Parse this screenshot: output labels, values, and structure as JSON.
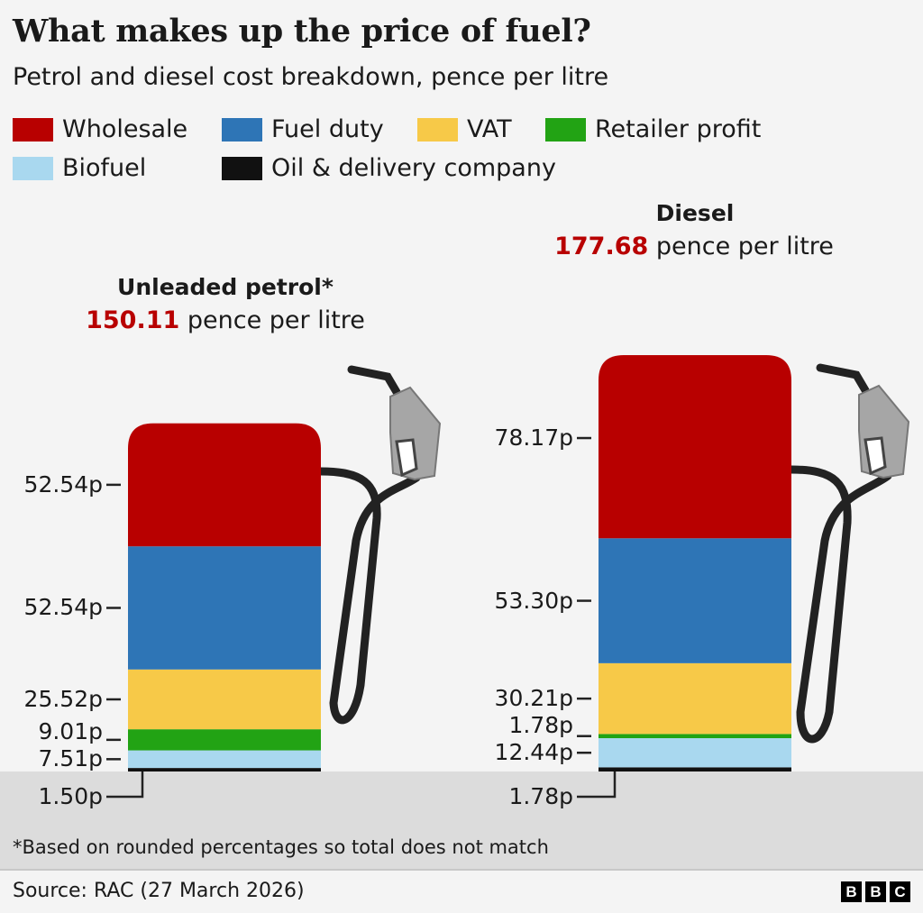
{
  "title": "What makes up the price of fuel?",
  "subtitle": "Petrol and diesel cost breakdown, pence per litre",
  "legend": [
    {
      "label": "Wholesale",
      "color": "#b80000"
    },
    {
      "label": "Fuel duty",
      "color": "#2e75b6"
    },
    {
      "label": "VAT",
      "color": "#f7c948"
    },
    {
      "label": "Retailer profit",
      "color": "#22a314"
    },
    {
      "label": "Biofuel",
      "color": "#a9d8ef"
    },
    {
      "label": "Oil & delivery company",
      "color": "#111111"
    }
  ],
  "chart_data": {
    "type": "bar",
    "stacked": true,
    "units": "pence per litre",
    "categories": [
      "Unleaded petrol*",
      "Diesel"
    ],
    "totals": [
      "150.11",
      "177.68"
    ],
    "total_suffix": " pence per litre",
    "series": [
      {
        "name": "Wholesale",
        "values": [
          52.54,
          78.17
        ],
        "labels": [
          "52.54p",
          "78.17p"
        ]
      },
      {
        "name": "Fuel duty",
        "values": [
          52.54,
          53.3
        ],
        "labels": [
          "52.54p",
          "53.30p"
        ]
      },
      {
        "name": "VAT",
        "values": [
          25.52,
          30.21
        ],
        "labels": [
          "25.52p",
          "30.21p"
        ]
      },
      {
        "name": "Retailer profit",
        "values": [
          9.01,
          1.78
        ],
        "labels": [
          "9.01p",
          "1.78p"
        ]
      },
      {
        "name": "Biofuel",
        "values": [
          7.51,
          12.44
        ],
        "labels": [
          "7.51p",
          "12.44p"
        ]
      },
      {
        "name": "Oil & delivery company",
        "values": [
          1.5,
          1.78
        ],
        "labels": [
          "1.50p",
          "1.78p"
        ]
      }
    ]
  },
  "pumps": [
    {
      "title": "Unleaded petrol*",
      "price_value": "150.11",
      "price_unit": " pence per litre"
    },
    {
      "title": "Diesel",
      "price_value": "177.68",
      "price_unit": " pence per litre"
    }
  ],
  "footnote": "*Based on rounded percentages so total does not match",
  "source": "Source: RAC (27 March 2026)",
  "logo": [
    "B",
    "B",
    "C"
  ]
}
